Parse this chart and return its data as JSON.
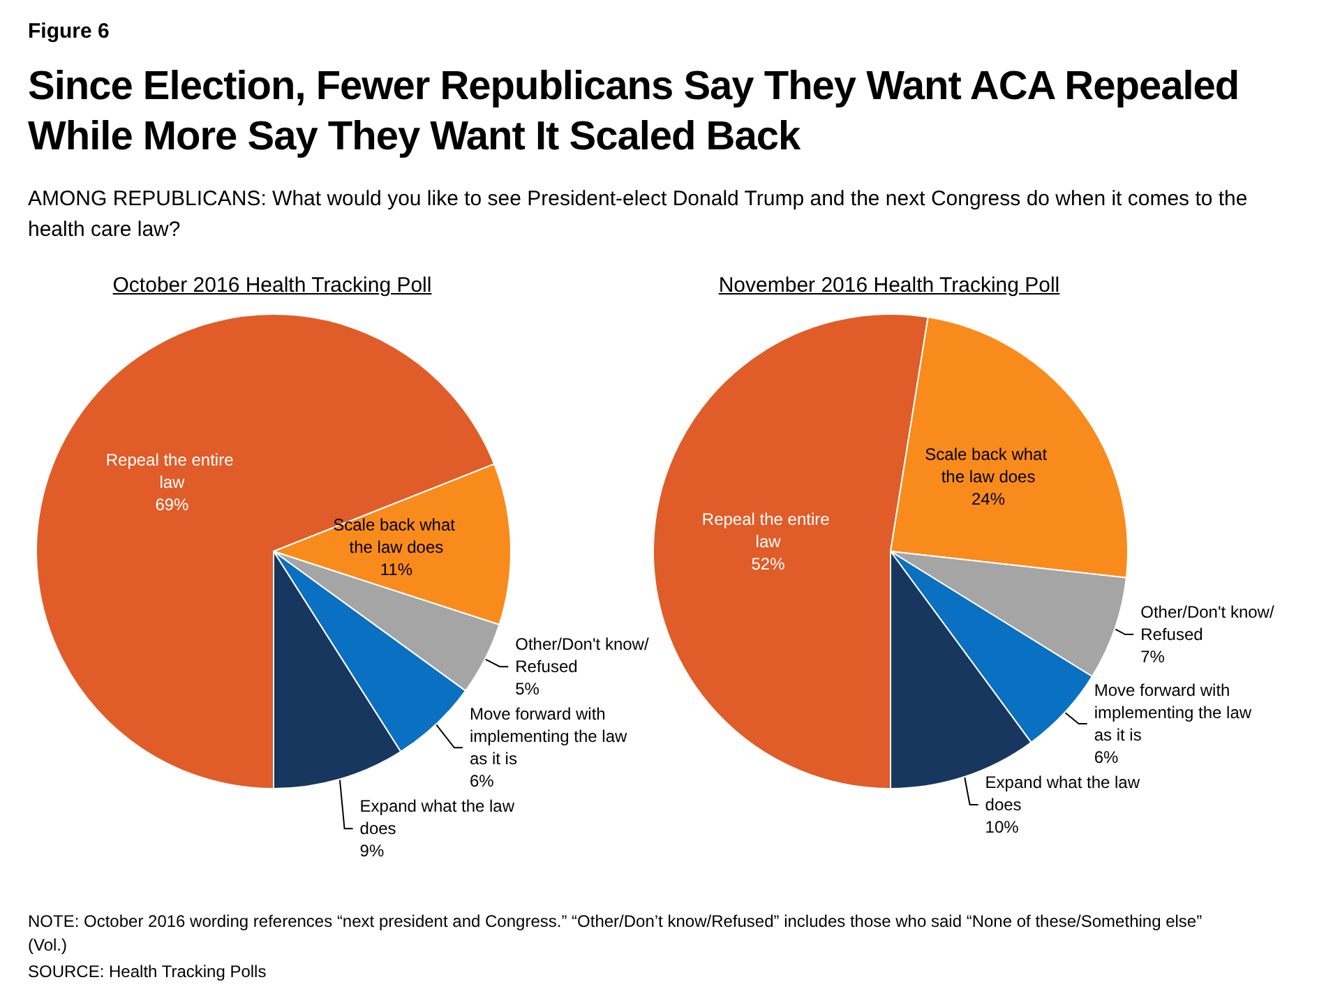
{
  "chart_data": [
    {
      "type": "other",
      "title": "Since Election, Fewer Republicans Say They Want ACA Repealed While More Say They Want It Scaled Back",
      "subtitle": "AMONG REPUBLICANS: What would you like to see President-elect Donald Trump and the next Congress do when it comes to the health care law?",
      "annotations": [
        "Figure 6",
        "NOTE: October 2016  wording references “next president and Congress.” “Other/Don’t know/Refused” includes those who said “None of these/Something else” (Vol.)",
        "SOURCE: Health Tracking Polls"
      ]
    },
    {
      "type": "pie",
      "title": "October 2016 Health Tracking Poll",
      "categories": [
        "Repeal the entire law",
        "Scale back what the law does",
        "Other/Don't know/Refused",
        "Move forward with implementing the law as it is",
        "Expand what the law does"
      ],
      "values": [
        69,
        11,
        5,
        6,
        9
      ],
      "value_labels": [
        "69%",
        "11%",
        "5%",
        "6%",
        "9%"
      ],
      "colors": [
        "#e05c28",
        "#f98b1c",
        "#a5a5a5",
        "#0a70c1",
        "#17375e"
      ],
      "legend": false
    },
    {
      "type": "pie",
      "title": "November 2016 Health Tracking Poll",
      "categories": [
        "Repeal the entire law",
        "Scale back what the law does",
        "Other/Don't know/Refused",
        "Move forward with implementing the law as it is",
        "Expand what the law does"
      ],
      "values": [
        52,
        24,
        7,
        6,
        10
      ],
      "value_labels": [
        "52%",
        "24%",
        "7%",
        "6%",
        "10%"
      ],
      "colors": [
        "#e05c28",
        "#f98b1c",
        "#a5a5a5",
        "#0a70c1",
        "#17375e"
      ],
      "legend": false
    }
  ]
}
